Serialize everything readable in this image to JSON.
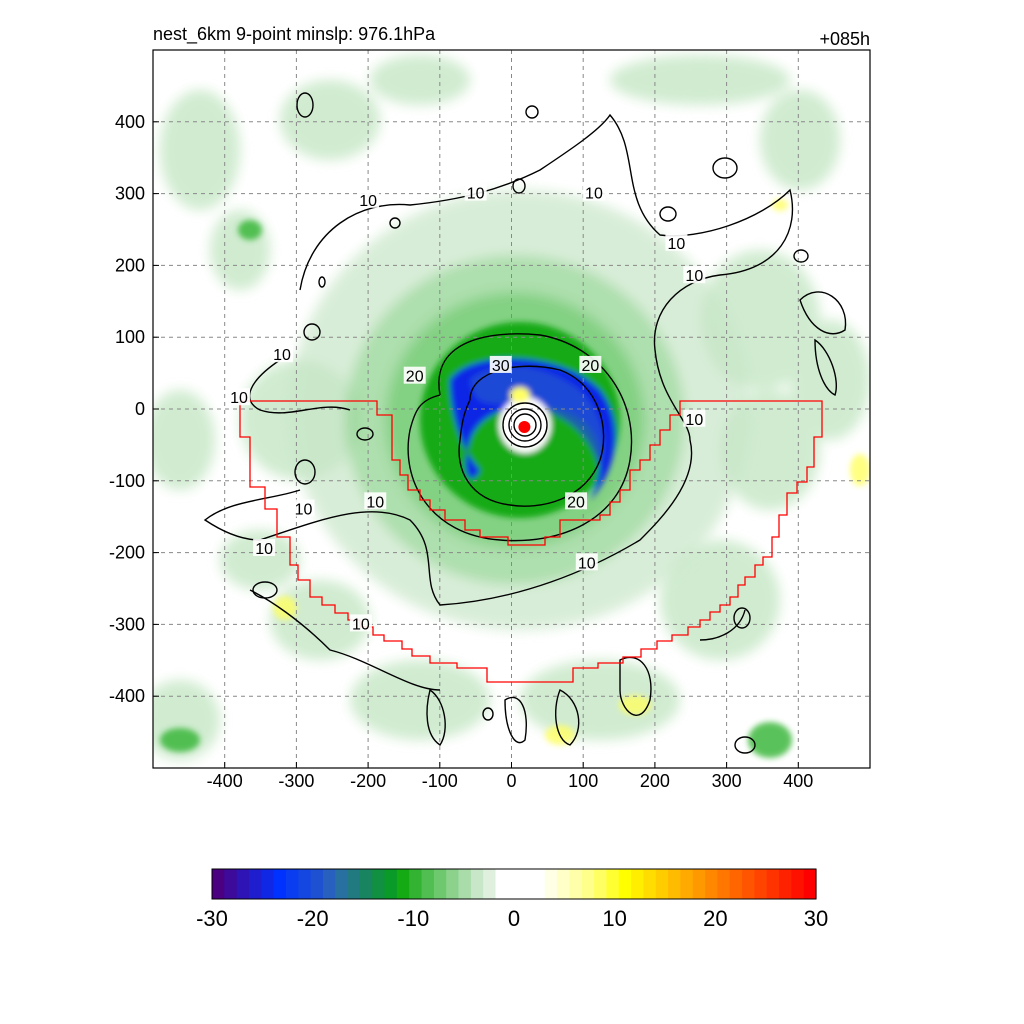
{
  "chart_data": {
    "type": "heatmap",
    "title": "nest_6km  9-point minslp: 976.1hPa",
    "subtitle": "+085h",
    "xlim": [
      -500,
      500
    ],
    "ylim": [
      -500,
      500
    ],
    "xticks": [
      -400,
      -300,
      -200,
      -100,
      0,
      100,
      200,
      300,
      400
    ],
    "yticks": [
      -400,
      -300,
      -200,
      -100,
      0,
      100,
      200,
      300,
      400
    ],
    "grid": true,
    "center_marker": {
      "x": 18,
      "y": -25,
      "color": "#ff0000"
    },
    "contour_levels": [
      10,
      20,
      30
    ],
    "contour_labels": [
      {
        "text": "10",
        "x": -200,
        "y": 290
      },
      {
        "text": "10",
        "x": -320,
        "y": 75
      },
      {
        "text": "10",
        "x": -380,
        "y": 15
      },
      {
        "text": "10",
        "x": -290,
        "y": -140
      },
      {
        "text": "10",
        "x": -190,
        "y": -130
      },
      {
        "text": "10",
        "x": -345,
        "y": -195
      },
      {
        "text": "10",
        "x": -210,
        "y": -300
      },
      {
        "text": "10",
        "x": 115,
        "y": 300
      },
      {
        "text": "10",
        "x": -50,
        "y": 300
      },
      {
        "text": "10",
        "x": 230,
        "y": 230
      },
      {
        "text": "10",
        "x": 255,
        "y": 185
      },
      {
        "text": "10",
        "x": 255,
        "y": -15
      },
      {
        "text": "10",
        "x": 105,
        "y": -215
      },
      {
        "text": "20",
        "x": -135,
        "y": 45
      },
      {
        "text": "20",
        "x": 110,
        "y": 60
      },
      {
        "text": "20",
        "x": 90,
        "y": -130
      },
      {
        "text": "30",
        "x": -15,
        "y": 60
      }
    ],
    "colorbar": {
      "min": -30,
      "max": 30,
      "ticks": [
        "-30",
        "-20",
        "-10",
        "0",
        "10",
        "20",
        "30"
      ],
      "colors": [
        "#4b0082",
        "#3d0a9a",
        "#2e14b4",
        "#1f1ece",
        "#1028e6",
        "#0032ff",
        "#0a3cf0",
        "#1446e1",
        "#1e50d2",
        "#2860c0",
        "#2870a0",
        "#207a80",
        "#188460",
        "#109040",
        "#0a9a28",
        "#14aa14",
        "#32b432",
        "#50be50",
        "#6ec86e",
        "#8cd28c",
        "#aadcaa",
        "#c8e6c8",
        "#dff0df",
        "#ffffff",
        "#ffffff",
        "#ffffff",
        "#ffffff",
        "#ffffe6",
        "#ffffc8",
        "#ffffaa",
        "#ffff8c",
        "#ffff64",
        "#ffff32",
        "#ffff00",
        "#ffee00",
        "#ffdd00",
        "#ffcc00",
        "#ffbb00",
        "#ffaa00",
        "#ff9900",
        "#ff8800",
        "#ff7700",
        "#ff6600",
        "#ff5500",
        "#ff4400",
        "#ff3300",
        "#ff2200",
        "#ff1100",
        "#ff0000"
      ]
    },
    "boundary_color": "#ff0000"
  }
}
